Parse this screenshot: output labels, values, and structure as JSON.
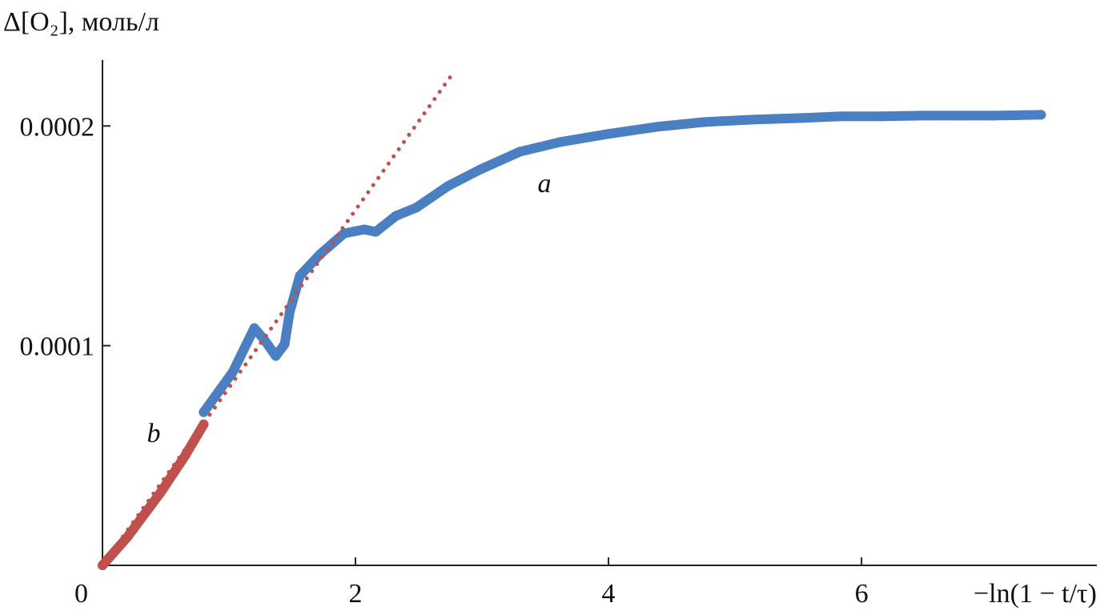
{
  "chart_data": {
    "type": "scatter",
    "y_label": "Δ[O₂], моль/л",
    "x_label": "−ln(1 − t/τ)",
    "xlim": [
      0,
      7.86
    ],
    "ylim": [
      0,
      0.00023
    ],
    "xticks": [
      0,
      2,
      4,
      6
    ],
    "yticks": [
      0.0001,
      0.0002
    ],
    "series": [
      {
        "name": "a",
        "color": "#4a7fc1",
        "style": "dots",
        "x": [
          0.8,
          1.03,
          1.2,
          1.28,
          1.37,
          1.44,
          1.48,
          1.56,
          1.72,
          1.91,
          2.07,
          2.16,
          2.32,
          2.48,
          2.73,
          2.99,
          3.3,
          3.62,
          4.0,
          4.38,
          4.76,
          5.14,
          5.52,
          5.84,
          6.15,
          6.47,
          6.78,
          7.04,
          7.42
        ],
        "values": [
          6.97e-05,
          8.8e-05,
          0.000108,
          0.0001026,
          9.53e-05,
          0.0001007,
          0.0001153,
          0.0001318,
          0.0001416,
          0.0001511,
          0.0001529,
          0.0001518,
          0.0001591,
          0.0001628,
          0.0001726,
          0.0001803,
          0.0001883,
          0.0001927,
          0.0001964,
          0.0001996,
          0.0002018,
          0.0002029,
          0.0002036,
          0.0002044,
          0.0002044,
          0.0002047,
          0.0002047,
          0.0002047,
          0.0002051
        ]
      },
      {
        "name": "b",
        "color": "#c0504d",
        "style": "dots",
        "x": [
          0,
          0.2,
          0.46,
          0.65,
          0.8
        ],
        "values": [
          0,
          1.31e-05,
          3.32e-05,
          4.96e-05,
          6.42e-05
        ]
      },
      {
        "color": "#c0504d",
        "style": "dotted",
        "x": [
          0,
          2.78
        ],
        "values": [
          0,
          0.0002248
        ]
      }
    ]
  }
}
